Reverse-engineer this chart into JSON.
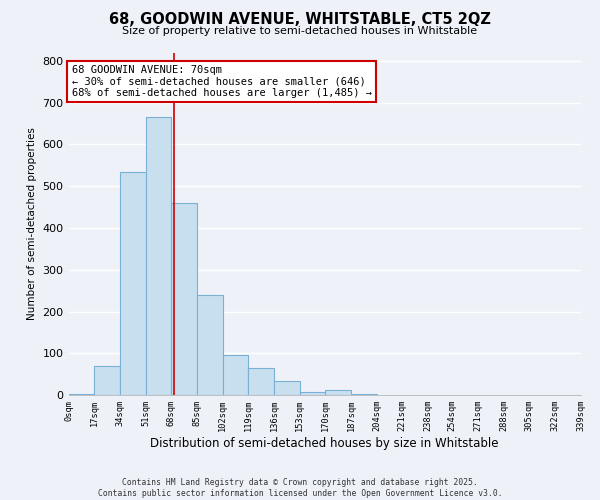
{
  "title": "68, GOODWIN AVENUE, WHITSTABLE, CT5 2QZ",
  "subtitle": "Size of property relative to semi-detached houses in Whitstable",
  "xlabel": "Distribution of semi-detached houses by size in Whitstable",
  "ylabel": "Number of semi-detached properties",
  "bar_color": "#c8dff0",
  "bar_edge_color": "#7ab0d4",
  "background_color": "#eef2f8",
  "grid_color": "#ffffff",
  "bin_edges": [
    0,
    17,
    34,
    51,
    68,
    85,
    102,
    119,
    136,
    153,
    170,
    187,
    204,
    221,
    238,
    254,
    271,
    288,
    305,
    322,
    339
  ],
  "bin_labels": [
    "0sqm",
    "17sqm",
    "34sqm",
    "51sqm",
    "68sqm",
    "85sqm",
    "102sqm",
    "119sqm",
    "136sqm",
    "153sqm",
    "170sqm",
    "187sqm",
    "204sqm",
    "221sqm",
    "238sqm",
    "254sqm",
    "271sqm",
    "288sqm",
    "305sqm",
    "322sqm",
    "339sqm"
  ],
  "counts": [
    2,
    70,
    535,
    665,
    460,
    240,
    95,
    65,
    33,
    8,
    12,
    3,
    0,
    0,
    0,
    0,
    0,
    0,
    0,
    0
  ],
  "property_line_x": 70,
  "annotation_title": "68 GOODWIN AVENUE: 70sqm",
  "annotation_line1": "← 30% of semi-detached houses are smaller (646)",
  "annotation_line2": "68% of semi-detached houses are larger (1,485) →",
  "annotation_box_color": "#ffffff",
  "annotation_box_edge": "#cc0000",
  "vline_color": "#cc0000",
  "ylim": [
    0,
    820
  ],
  "yticks": [
    0,
    100,
    200,
    300,
    400,
    500,
    600,
    700,
    800
  ],
  "footer1": "Contains HM Land Registry data © Crown copyright and database right 2025.",
  "footer2": "Contains public sector information licensed under the Open Government Licence v3.0."
}
